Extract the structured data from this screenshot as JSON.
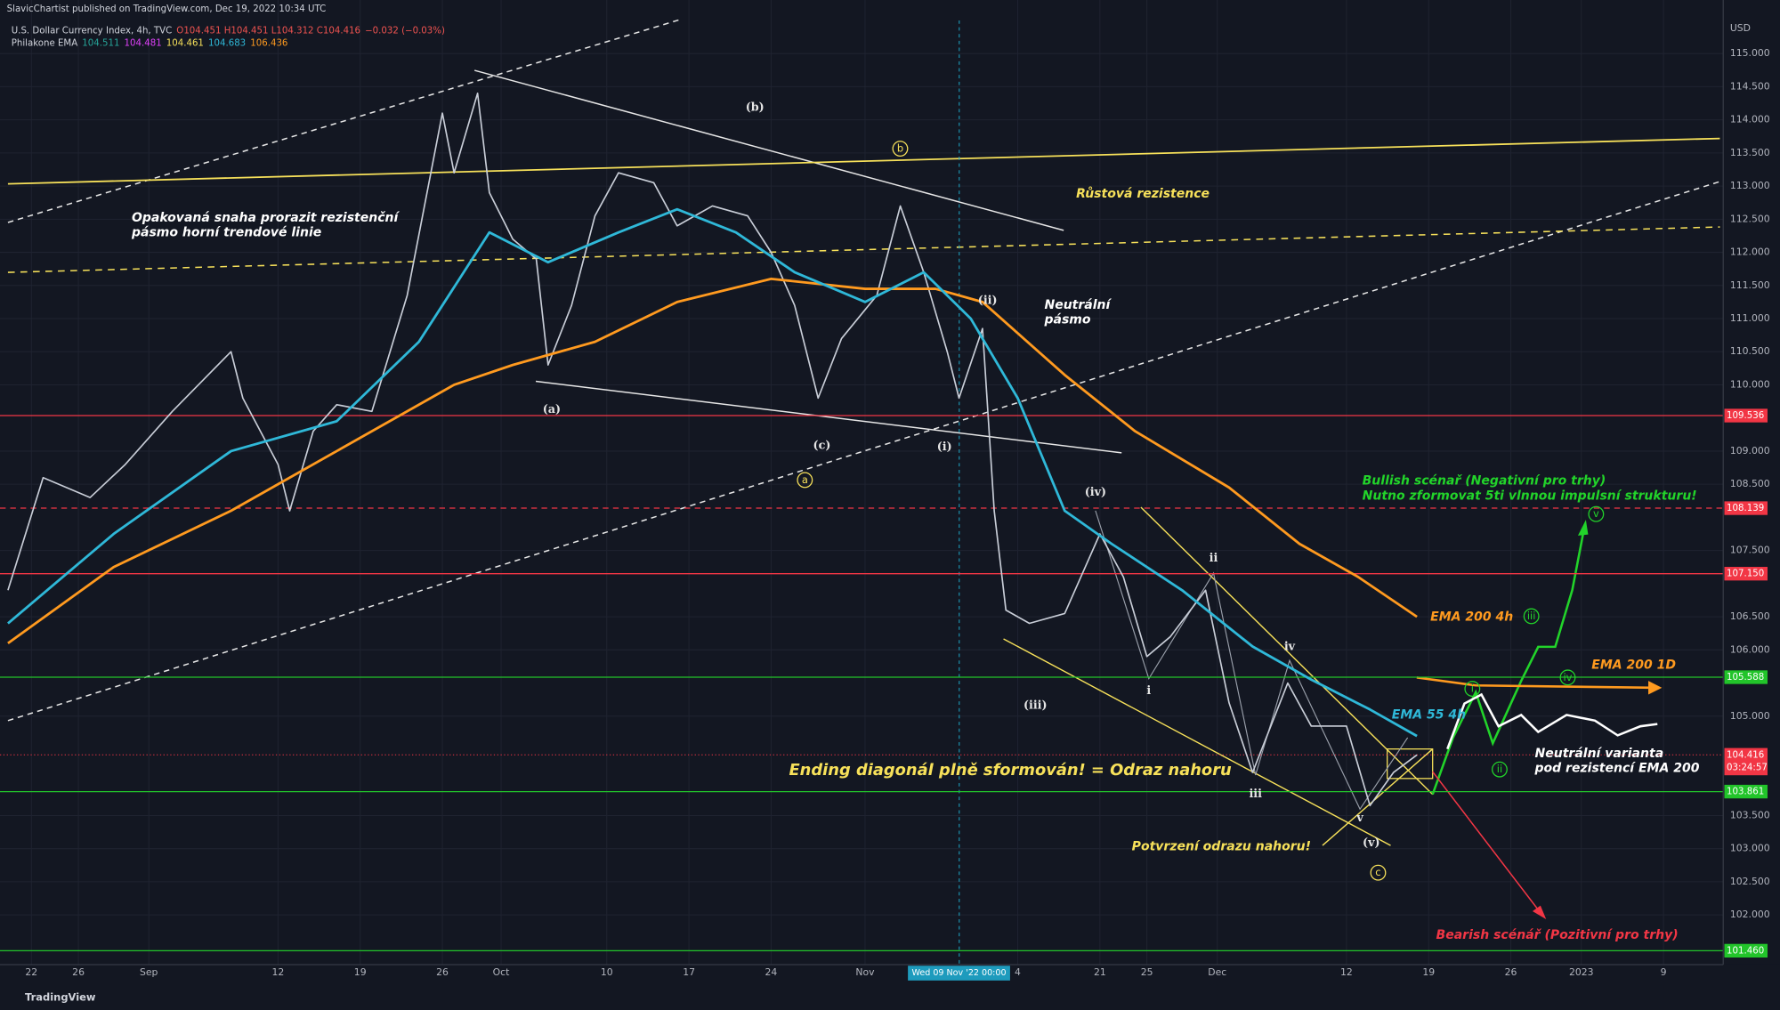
{
  "header": {
    "publisher": "SlavicChartist published on TradingView.com, Dec 19, 2022 10:34 UTC",
    "symbol": "U.S. Dollar Currency Index, 4h, TVC",
    "ohlc": "O104.451 H104.451 L104.312 C104.416",
    "change": "−0.032 (−0.03%)",
    "indicator": "Philakone EMA",
    "indicator_values": [
      "104.511",
      "104.481",
      "104.461",
      "104.683",
      "106.436"
    ]
  },
  "chart_data": {
    "type": "line",
    "currency": "USD",
    "xlim": [
      -2,
      143.8
    ],
    "ylim": [
      101.25,
      115.5
    ],
    "xticks": [
      {
        "value": 0,
        "label": "22"
      },
      {
        "value": 4,
        "label": "26"
      },
      {
        "value": 10,
        "label": "Sep"
      },
      {
        "value": 21,
        "label": "12"
      },
      {
        "value": 28,
        "label": "19"
      },
      {
        "value": 35,
        "label": "26"
      },
      {
        "value": 40,
        "label": "Oct"
      },
      {
        "value": 49,
        "label": "10"
      },
      {
        "value": 56,
        "label": "17"
      },
      {
        "value": 63,
        "label": "24"
      },
      {
        "value": 71,
        "label": "Nov"
      },
      {
        "value": 84,
        "label": "4"
      },
      {
        "value": 91,
        "label": "21"
      },
      {
        "value": 95,
        "label": "25"
      },
      {
        "value": 101,
        "label": "Dec"
      },
      {
        "value": 112,
        "label": "12"
      },
      {
        "value": 119,
        "label": "19"
      },
      {
        "value": 126,
        "label": "26"
      },
      {
        "value": 132,
        "label": "2023"
      },
      {
        "value": 139,
        "label": "9"
      }
    ],
    "yticks": [
      {
        "value": 115,
        "label": "115.000"
      },
      {
        "value": 114.5,
        "label": "114.500"
      },
      {
        "value": 114,
        "label": "114.000"
      },
      {
        "value": 113.5,
        "label": "113.500"
      },
      {
        "value": 113,
        "label": "113.000"
      },
      {
        "value": 112.5,
        "label": "112.500"
      },
      {
        "value": 112,
        "label": "112.000"
      },
      {
        "value": 111.5,
        "label": "111.500"
      },
      {
        "value": 111,
        "label": "111.000"
      },
      {
        "value": 110.5,
        "label": "110.500"
      },
      {
        "value": 110,
        "label": "110.000"
      },
      {
        "value": 109,
        "label": "109.000"
      },
      {
        "value": 108.5,
        "label": "108.500"
      },
      {
        "value": 107.5,
        "label": "107.500"
      },
      {
        "value": 106.5,
        "label": "106.500"
      },
      {
        "value": 106,
        "label": "106.000"
      },
      {
        "value": 105,
        "label": "105.000"
      },
      {
        "value": 103.5,
        "label": "103.500"
      },
      {
        "value": 103,
        "label": "103.000"
      },
      {
        "value": 102.5,
        "label": "102.500"
      },
      {
        "value": 102,
        "label": "102.000"
      }
    ],
    "grid": true,
    "crosshair_label": "Wed 09 Nov '22   00:00",
    "current_price": 104.416,
    "countdown": "03:24:57",
    "current_color": "#f23645",
    "levels": [
      {
        "value": 109.536,
        "color": "#f23645",
        "dashed": false
      },
      {
        "value": 108.139,
        "color": "#f23645",
        "dashed": true
      },
      {
        "value": 107.15,
        "color": "#f23645",
        "dashed": false,
        "label": "107.150"
      },
      {
        "value": 105.588,
        "color": "#22c42a",
        "dashed": false
      },
      {
        "value": 103.861,
        "color": "#22c42a",
        "dashed": false
      },
      {
        "value": 101.46,
        "color": "#22c42a",
        "dashed": false,
        "label": "101.460"
      }
    ],
    "series": [
      {
        "color": "#c9ced8",
        "width": 1.3,
        "x": [
          -2,
          1,
          5,
          8,
          12,
          17,
          18,
          21,
          22,
          24,
          26,
          29,
          32,
          35,
          36,
          38,
          39,
          41,
          43,
          44,
          46,
          48,
          50,
          53,
          55,
          58,
          61,
          63,
          65,
          67,
          69,
          72,
          74,
          76,
          78,
          79,
          81,
          82,
          83,
          85,
          88,
          91,
          93,
          95,
          97,
          100,
          102,
          104,
          107,
          109,
          112,
          114,
          116,
          118
        ],
        "values": [
          106.9,
          108.6,
          108.3,
          108.8,
          109.6,
          110.5,
          109.8,
          108.8,
          108.1,
          109.3,
          109.7,
          109.6,
          111.35,
          114.1,
          113.2,
          114.4,
          112.9,
          112.2,
          111.9,
          110.3,
          111.2,
          112.55,
          113.2,
          113.05,
          112.4,
          112.7,
          112.55,
          112.0,
          111.2,
          109.8,
          110.7,
          111.35,
          112.7,
          111.7,
          110.5,
          109.8,
          110.85,
          108.1,
          106.6,
          106.4,
          106.55,
          107.75,
          107.1,
          105.9,
          106.2,
          106.9,
          105.2,
          104.15,
          105.5,
          104.85,
          104.85,
          103.65,
          104.15,
          104.416
        ]
      },
      {
        "color": "#ff9a1f",
        "width": 2.2,
        "x": [
          -2,
          7,
          17,
          26,
          36,
          41,
          48,
          55,
          63,
          71,
          77,
          81,
          88,
          94,
          102,
          108,
          113,
          118
        ],
        "values": [
          106.1,
          107.25,
          108.1,
          109.0,
          110.0,
          110.3,
          110.65,
          111.25,
          111.6,
          111.45,
          111.45,
          111.25,
          110.15,
          109.3,
          108.45,
          107.6,
          107.1,
          106.5
        ]
      },
      {
        "color": "#2fb8d8",
        "width": 2.2,
        "x": [
          -2,
          7,
          17,
          26,
          33,
          39,
          44,
          50,
          55,
          60,
          65,
          71,
          76,
          80,
          84,
          88,
          92,
          98,
          104,
          109,
          114,
          118
        ],
        "values": [
          106.4,
          107.75,
          109.0,
          109.45,
          110.65,
          112.3,
          111.85,
          112.3,
          112.65,
          112.3,
          111.7,
          111.25,
          111.7,
          111.0,
          109.8,
          108.1,
          107.6,
          106.9,
          106.05,
          105.55,
          105.1,
          104.7
        ]
      }
    ]
  },
  "annotations": [
    "Opakovaná snaha prorazit rezistenční",
    "pásmo horní trendové linie",
    "Růstová rezistence",
    "Neutrální",
    "pásmo",
    "Bullish scénař (Negativní pro trhy)",
    "Nutno zformovat 5ti vlnnou impulsní strukturu!",
    "EMA 200 4h",
    "EMA 200 1D",
    "EMA 55 4h",
    "Neutrální varianta",
    "pod rezistencí EMA 200",
    "Ending diagonál plně sformován! = Odraz nahoru",
    "Potvrzení odrazu nahoru!",
    "Bearish scénář (Pozitivní pro trhy)"
  ],
  "wave_labels": [
    "(b)",
    "(a)",
    "(c)",
    "(i)",
    "(ii)",
    "(iii)",
    "(iv)",
    "(v)",
    "i",
    "ii",
    "iii",
    "iv",
    "v"
  ],
  "circled_labels": [
    "b",
    "a",
    "c",
    "i",
    "ii",
    "iii",
    "iv",
    "v"
  ],
  "footer": "TradingView"
}
